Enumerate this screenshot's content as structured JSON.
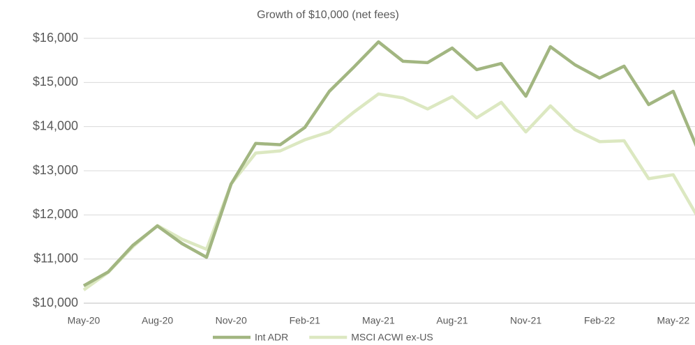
{
  "chart_data": {
    "type": "line",
    "title": "Growth of $10,000 (net fees)",
    "categories": [
      "May-20",
      null,
      null,
      "Aug-20",
      null,
      null,
      "Nov-20",
      null,
      null,
      "Feb-21",
      null,
      null,
      "May-21",
      null,
      null,
      "Aug-21",
      null,
      null,
      "Nov-21",
      null,
      null,
      "Feb-22",
      null,
      null,
      "May-22",
      null
    ],
    "series": [
      {
        "name": "Int ADR",
        "color": "#a2b681",
        "values": [
          10395,
          10710,
          11310,
          11750,
          11350,
          11040,
          12700,
          13620,
          13590,
          13980,
          14800,
          15350,
          15920,
          15480,
          15450,
          15780,
          15290,
          15430,
          14690,
          15810,
          15400,
          15100,
          15370,
          14500,
          14800,
          13480
        ]
      },
      {
        "name": "MSCI ACWI ex-US",
        "color": "#dce8c1",
        "values": [
          10300,
          10700,
          11280,
          11760,
          11450,
          11220,
          12700,
          13400,
          13450,
          13700,
          13880,
          14330,
          14740,
          14650,
          14400,
          14680,
          14200,
          14550,
          13880,
          14470,
          13930,
          13660,
          13680,
          12820,
          12910,
          11950
        ]
      }
    ],
    "ylim": [
      10000,
      16000
    ],
    "yticks": [
      {
        "value": 10000,
        "label": "$10,000"
      },
      {
        "value": 11000,
        "label": "$11,000"
      },
      {
        "value": 12000,
        "label": "$12,000"
      },
      {
        "value": 13000,
        "label": "$13,000"
      },
      {
        "value": 14000,
        "label": "$14,000"
      },
      {
        "value": 15000,
        "label": "$15,000"
      },
      {
        "value": 16000,
        "label": "$16,000"
      }
    ],
    "grid": true,
    "legend": "bottom"
  }
}
